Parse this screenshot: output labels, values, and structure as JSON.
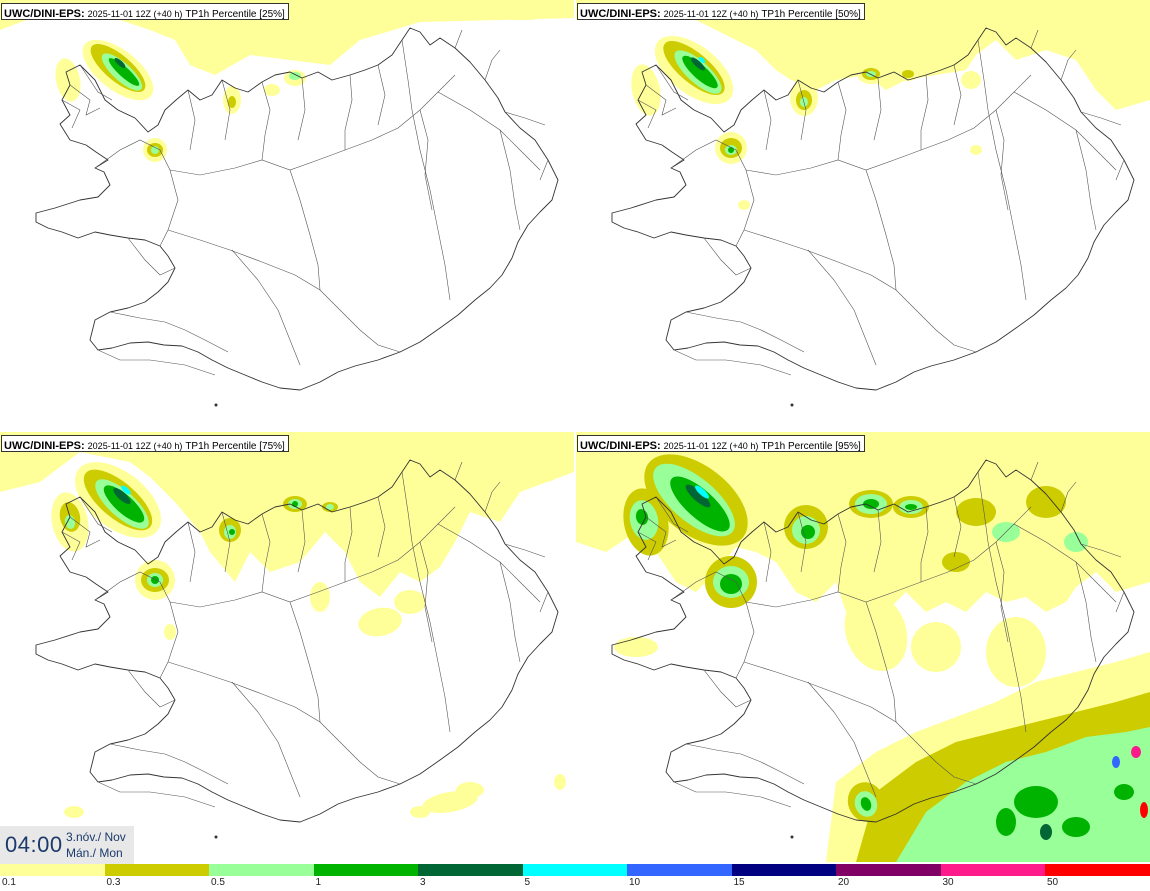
{
  "panels": [
    {
      "model": "UWC/DINI-EPS:",
      "run": "2025-11-01 12Z (+40 h)",
      "param": "TP1h Percentile [25%]"
    },
    {
      "model": "UWC/DINI-EPS:",
      "run": "2025-11-01 12Z (+40 h)",
      "param": "TP1h Percentile [50%]"
    },
    {
      "model": "UWC/DINI-EPS:",
      "run": "2025-11-01 12Z (+40 h)",
      "param": "TP1h Percentile [75%]"
    },
    {
      "model": "UWC/DINI-EPS:",
      "run": "2025-11-01 12Z (+40 h)",
      "param": "TP1h Percentile [95%]"
    }
  ],
  "valid_time": {
    "clock": "04:00",
    "date": "3.nóv./ Nov",
    "weekday": "Mán./ Mon"
  },
  "legend": {
    "colors": [
      "#ffff99",
      "#cccc00",
      "#99ff99",
      "#00b300",
      "#006633",
      "#00ffff",
      "#3366ff",
      "#000080",
      "#800066",
      "#ff1a8c",
      "#ff0000"
    ],
    "labels": [
      "0.1",
      "0.3",
      "0.5",
      "1",
      "3",
      "5",
      "10",
      "15",
      "20",
      "30",
      "50"
    ]
  }
}
